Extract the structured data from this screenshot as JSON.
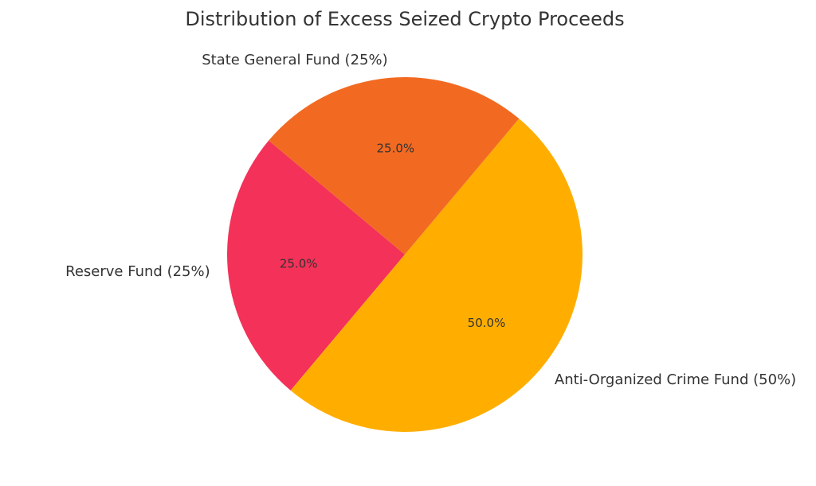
{
  "chart_data": {
    "type": "pie",
    "title": "Distribution of Excess Seized Crypto Proceeds",
    "start_angle_deg": 140,
    "direction": "counterclockwise",
    "slices": [
      {
        "label": "Reserve Fund (25%)",
        "value": 25,
        "pct_text": "25.0%",
        "color": "#f43158"
      },
      {
        "label": "Anti-Organized Crime Fund (50%)",
        "value": 50,
        "pct_text": "50.0%",
        "color": "#ffae00"
      },
      {
        "label": "State General Fund (25%)",
        "value": 25,
        "pct_text": "25.0%",
        "color": "#f26a21"
      }
    ]
  }
}
